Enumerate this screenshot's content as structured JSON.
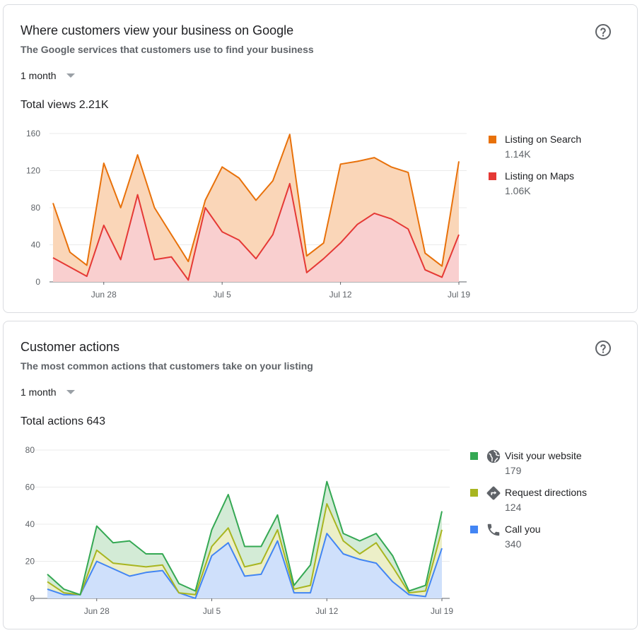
{
  "cards": [
    {
      "title": "Where customers view your business on Google",
      "subtitle": "The Google services that customers use to find your business",
      "period": "1 month",
      "total": "Total views 2.21K",
      "legend": [
        {
          "name": "Listing on Search",
          "value": "1.14K",
          "color": "#e8710a"
        },
        {
          "name": "Listing on Maps",
          "value": "1.06K",
          "color": "#e53935"
        }
      ],
      "chart_data": {
        "type": "area",
        "stacked": true,
        "ylim": [
          0,
          160
        ],
        "yticks": [
          "0",
          "40",
          "80",
          "120",
          "160"
        ],
        "xticks": [
          {
            "label": "Jun 28",
            "index": 3
          },
          {
            "label": "Jul 5",
            "index": 10
          },
          {
            "label": "Jul 12",
            "index": 17
          },
          {
            "label": "Jul 19",
            "index": 24
          }
        ],
        "grid": true,
        "legend_position": "right",
        "series": [
          {
            "name": "Listing on Maps",
            "color": "#e53935",
            "fill": "#f9cfcf",
            "values": [
              26,
              16,
              6,
              61,
              24,
              94,
              24,
              27,
              2,
              80,
              54,
              45,
              25,
              51,
              106,
              10,
              25,
              42,
              62,
              74,
              68,
              57,
              13,
              5,
              51
            ]
          },
          {
            "name": "Listing on Search",
            "color": "#e8710a",
            "fill": "#fad6b8",
            "values": [
              59,
              16,
              12,
              67,
              56,
              43,
              56,
              24,
              20,
              8,
              70,
              67,
              63,
              58,
              53,
              18,
              17,
              85,
              68,
              60,
              56,
              61,
              18,
              12,
              79
            ]
          }
        ]
      }
    },
    {
      "title": "Customer actions",
      "subtitle": "The most common actions that customers take on your listing",
      "period": "1 month",
      "total": "Total actions 643",
      "legend": [
        {
          "name": "Visit your website",
          "value": "179",
          "color": "#34a853",
          "icon": "globe-icon"
        },
        {
          "name": "Request directions",
          "value": "124",
          "color": "#a8b520",
          "icon": "directions-icon"
        },
        {
          "name": "Call you",
          "value": "340",
          "color": "#4285f4",
          "icon": "phone-icon"
        }
      ],
      "chart_data": {
        "type": "area",
        "stacked": true,
        "ylim": [
          0,
          80
        ],
        "yticks": [
          "0",
          "20",
          "40",
          "60",
          "80"
        ],
        "xticks": [
          {
            "label": "Jun 28",
            "index": 3
          },
          {
            "label": "Jul 5",
            "index": 10
          },
          {
            "label": "Jul 12",
            "index": 17
          },
          {
            "label": "Jul 19",
            "index": 24
          }
        ],
        "grid": true,
        "legend_position": "right",
        "series": [
          {
            "name": "Call you",
            "color": "#4285f4",
            "fill": "#cfe0fb",
            "values": [
              5,
              2,
              2,
              20,
              16,
              12,
              14,
              15,
              3,
              0,
              23,
              30,
              12,
              13,
              31,
              3,
              3,
              35,
              24,
              21,
              19,
              9,
              2,
              1,
              27
            ]
          },
          {
            "name": "Request directions",
            "color": "#a8b520",
            "fill": "#ecefc8",
            "values": [
              4,
              1,
              0,
              6,
              3,
              6,
              3,
              3,
              0,
              2,
              5,
              8,
              5,
              6,
              6,
              2,
              4,
              16,
              7,
              3,
              11,
              8,
              1,
              3,
              10
            ]
          },
          {
            "name": "Visit your website",
            "color": "#34a853",
            "fill": "#d3ebd6",
            "values": [
              4,
              2,
              0,
              13,
              11,
              13,
              7,
              6,
              5,
              2,
              9,
              18,
              11,
              9,
              8,
              2,
              11,
              12,
              4,
              7,
              5,
              6,
              1,
              3,
              10
            ]
          }
        ]
      }
    }
  ]
}
